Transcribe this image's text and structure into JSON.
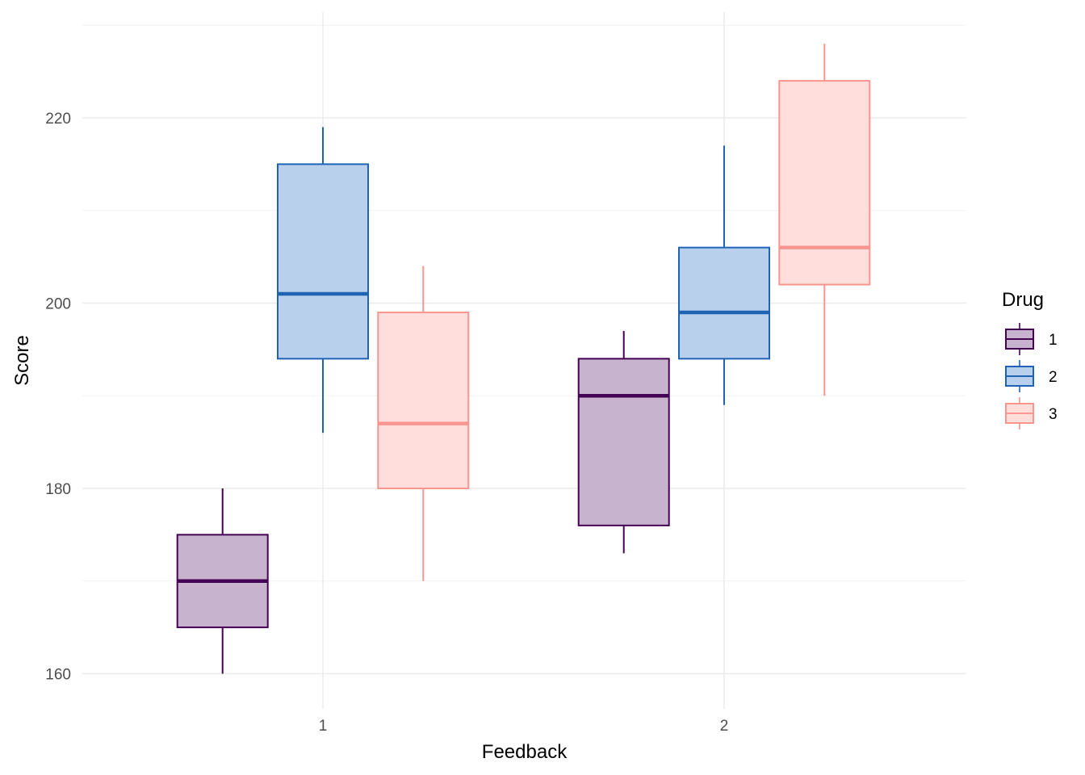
{
  "chart_data": {
    "type": "boxplot",
    "xlabel": "Feedback",
    "ylabel": "Score",
    "categories": [
      "1",
      "2"
    ],
    "ylim": [
      155,
      232
    ],
    "y_ticks": [
      160,
      180,
      200,
      220
    ],
    "y_tick_labels": [
      "160",
      "180",
      "200",
      "220"
    ],
    "grid": true,
    "legend": {
      "title": "Drug",
      "position": "right"
    },
    "series": [
      {
        "name": "1",
        "color": "#440154",
        "fill": "#c7b3cd",
        "boxes": [
          {
            "category": "1",
            "min": 160,
            "q1": 165,
            "median": 170,
            "q3": 175,
            "max": 180
          },
          {
            "category": "2",
            "min": 173,
            "q1": 176,
            "median": 190,
            "q3": 194,
            "max": 197
          }
        ]
      },
      {
        "name": "2",
        "color": "#1f63b4",
        "fill": "#b9d0ec",
        "boxes": [
          {
            "category": "1",
            "min": 186,
            "q1": 194,
            "median": 201,
            "q3": 215,
            "max": 219
          },
          {
            "category": "2",
            "min": 189,
            "q1": 194,
            "median": 199,
            "q3": 206,
            "max": 217
          }
        ]
      },
      {
        "name": "3",
        "color": "#f8958e",
        "fill": "#ffdedc",
        "boxes": [
          {
            "category": "1",
            "min": 170,
            "q1": 180,
            "median": 187,
            "q3": 199,
            "max": 204
          },
          {
            "category": "2",
            "min": 190,
            "q1": 202,
            "median": 206,
            "q3": 224,
            "max": 228
          }
        ]
      }
    ]
  }
}
